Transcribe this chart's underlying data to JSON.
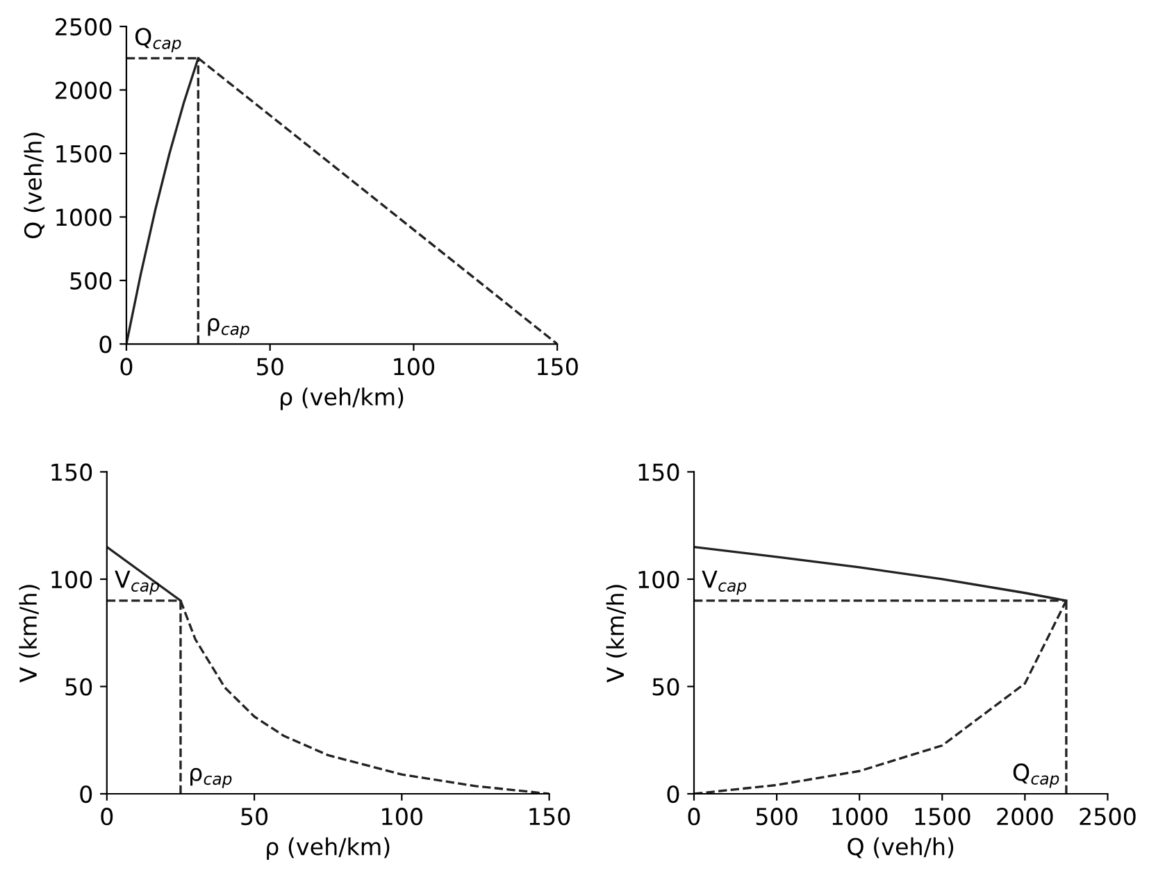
{
  "chart_data": [
    {
      "type": "line",
      "xlabel": "ρ (veh/km)",
      "ylabel": "Q (veh/h)",
      "xlim": [
        0,
        150
      ],
      "xticks": [
        0,
        50,
        100,
        150
      ],
      "ylim": [
        0,
        2500
      ],
      "yticks": [
        0,
        500,
        1000,
        1500,
        2000,
        2500
      ],
      "series": [
        {
          "color": "#222222",
          "line_style": "solid",
          "x": [
            0,
            5,
            10,
            15,
            20,
            25
          ],
          "values": [
            0,
            550,
            1050,
            1500,
            1900,
            2250
          ]
        },
        {
          "color": "#222222",
          "line_style": "dashed",
          "x": [
            25,
            150
          ],
          "values": [
            2250,
            0
          ]
        },
        {
          "color": "#222222",
          "line_style": "dashed",
          "x": [
            0,
            25
          ],
          "values": [
            2250,
            2250
          ]
        },
        {
          "color": "#222222",
          "line_style": "dashed",
          "x": [
            25,
            25
          ],
          "values": [
            0,
            2250
          ]
        }
      ],
      "annotations": [
        {
          "text": "Q$_{cap}$",
          "x": 0,
          "y": 2250
        },
        {
          "text": "ρ$_{cap}$",
          "x": 25,
          "y": 0
        }
      ]
    },
    {
      "type": "line",
      "xlabel": "ρ (veh/km)",
      "ylabel": "V (km/h)",
      "xlim": [
        0,
        150
      ],
      "xticks": [
        0,
        50,
        100,
        150
      ],
      "ylim": [
        0,
        150
      ],
      "yticks": [
        0,
        50,
        100,
        150
      ],
      "series": [
        {
          "color": "#222222",
          "line_style": "solid",
          "x": [
            0,
            25
          ],
          "values": [
            115,
            90
          ]
        },
        {
          "color": "#222222",
          "line_style": "dashed",
          "x": [
            25,
            30,
            40,
            50,
            60,
            75,
            100,
            125,
            150
          ],
          "values": [
            90,
            72,
            49.5,
            36,
            27,
            18,
            9,
            3.6,
            0
          ]
        },
        {
          "color": "#222222",
          "line_style": "dashed",
          "x": [
            0,
            25
          ],
          "values": [
            90,
            90
          ]
        },
        {
          "color": "#222222",
          "line_style": "dashed",
          "x": [
            25,
            25
          ],
          "values": [
            0,
            90
          ]
        }
      ],
      "annotations": [
        {
          "text": "V$_{cap}$",
          "x": 0,
          "y": 90
        },
        {
          "text": "ρ$_{cap}$",
          "x": 25,
          "y": 0
        }
      ]
    },
    {
      "type": "line",
      "xlabel": "Q (veh/h)",
      "ylabel": "V (km/h)",
      "xlim": [
        0,
        2500
      ],
      "xticks": [
        0,
        500,
        1000,
        1500,
        2000,
        2500
      ],
      "ylim": [
        0,
        150
      ],
      "yticks": [
        0,
        50,
        100,
        150
      ],
      "series": [
        {
          "color": "#222222",
          "line_style": "solid",
          "x": [
            0,
            500,
            1000,
            1500,
            2000,
            2250
          ],
          "values": [
            115,
            110.4,
            105.5,
            100,
            93.6,
            90
          ]
        },
        {
          "color": "#222222",
          "line_style": "dashed",
          "x": [
            0,
            500,
            1000,
            1500,
            2000,
            2250
          ],
          "values": [
            0,
            4.1,
            10.6,
            22.5,
            51.4,
            90
          ]
        },
        {
          "color": "#222222",
          "line_style": "dashed",
          "x": [
            0,
            2250
          ],
          "values": [
            90,
            90
          ]
        },
        {
          "color": "#222222",
          "line_style": "dashed",
          "x": [
            2250,
            2250
          ],
          "values": [
            0,
            90
          ]
        }
      ],
      "annotations": [
        {
          "text": "V$_{cap}$",
          "x": 0,
          "y": 90
        },
        {
          "text": "Q$_{cap}$",
          "x": 2250,
          "y": 0
        }
      ]
    }
  ]
}
